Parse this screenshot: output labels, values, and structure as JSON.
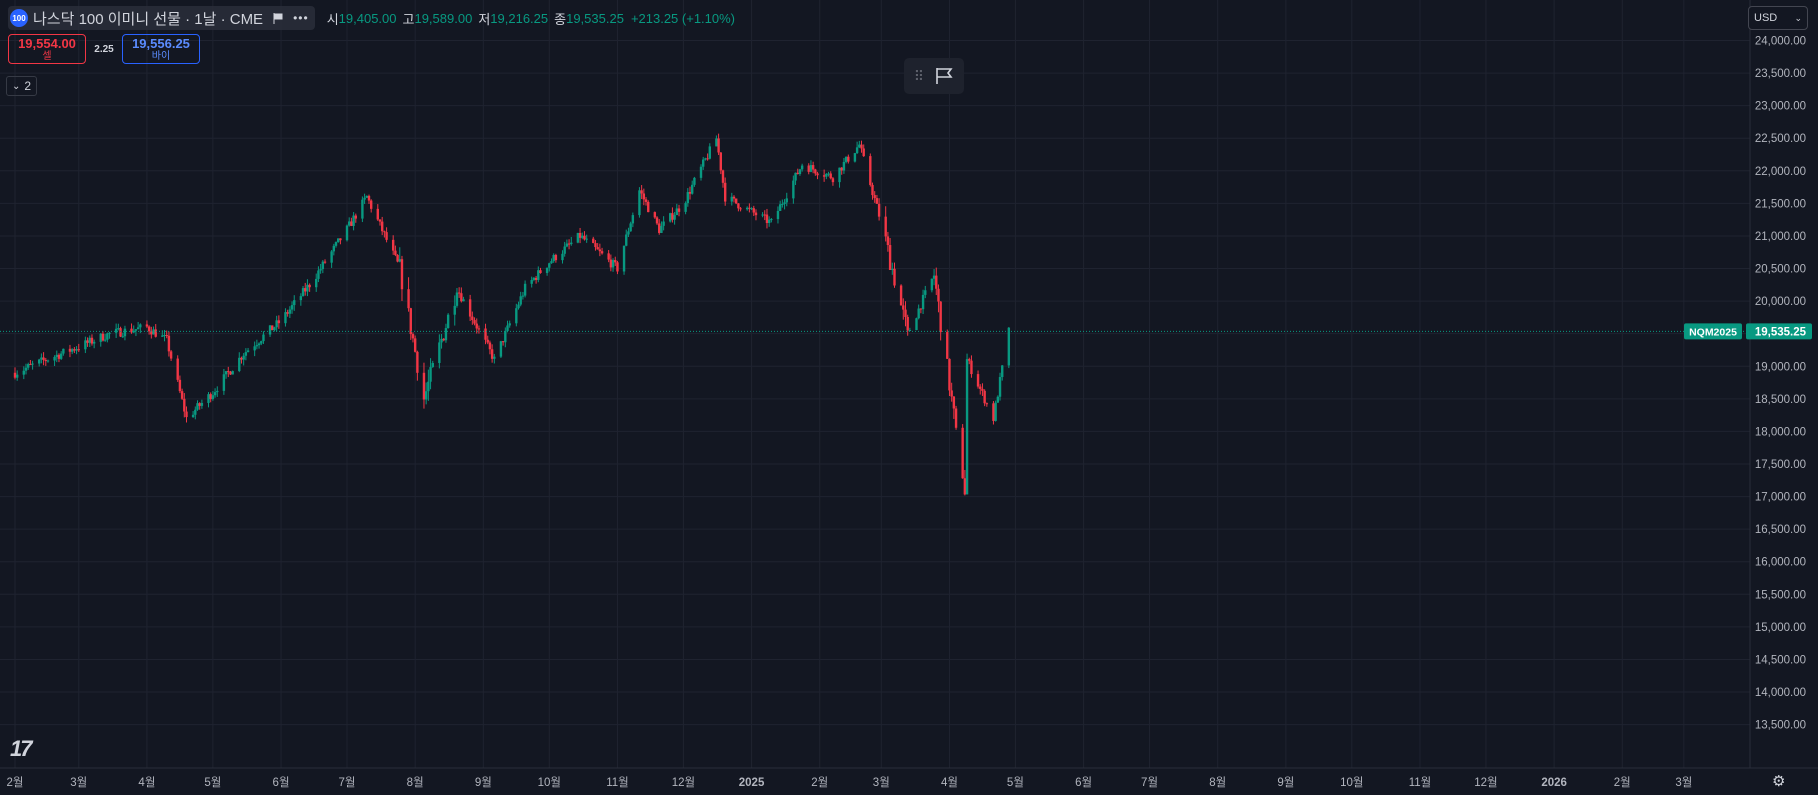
{
  "legend": {
    "symbol_logo": "100",
    "title": "나스닥 100 이미니 선물 · 1날 · CME",
    "more_icon": "more-dots-icon",
    "open_label": "시",
    "open_value": "19,405.00",
    "high_label": "고",
    "high_value": "19,589.00",
    "low_label": "저",
    "low_value": "19,216.25",
    "close_label": "종",
    "close_value": "19,535.25",
    "change": "+213.25 (+1.10%)"
  },
  "trade": {
    "sell_price": "19,554.00",
    "sell_label": "셀",
    "spread": "2.25",
    "buy_price": "19,556.25",
    "buy_label": "바이"
  },
  "collapse_label": "2",
  "currency": "USD",
  "price_tag": {
    "symbol": "NQM2025",
    "value": "19,535.25"
  },
  "colors": {
    "up": "#089981",
    "down": "#f23645",
    "background": "#131722",
    "grid": "#1f2330"
  },
  "chart_data": {
    "type": "candlestick",
    "y_axis_ticks": [
      "24,000.00",
      "23,500.00",
      "23,000.00",
      "22,500.00",
      "22,000.00",
      "21,500.00",
      "21,000.00",
      "20,500.00",
      "20,000.00",
      "19,500.00",
      "19,000.00",
      "18,500.00",
      "18,000.00",
      "17,500.00",
      "17,000.00",
      "16,500.00",
      "16,000.00",
      "15,500.00",
      "15,000.00",
      "14,500.00",
      "14,000.00",
      "13,500.00"
    ],
    "x_axis_ticks": [
      "2월",
      "3월",
      "4월",
      "5월",
      "6월",
      "7월",
      "8월",
      "9월",
      "10월",
      "11월",
      "12월",
      "2025",
      "2월",
      "3월",
      "4월",
      "5월",
      "6월",
      "7월",
      "8월",
      "9월",
      "10월",
      "11월",
      "12월",
      "2026",
      "2월",
      "3월"
    ],
    "ylim": [
      13300,
      24200
    ],
    "last_price": 19535.25,
    "series": [
      {
        "date": "2024-02-01",
        "close": 18900
      },
      {
        "date": "2024-02-15",
        "close": 19100
      },
      {
        "date": "2024-03-01",
        "close": 19300
      },
      {
        "date": "2024-03-15",
        "close": 19500
      },
      {
        "date": "2024-04-01",
        "close": 19600
      },
      {
        "date": "2024-04-10",
        "close": 19400
      },
      {
        "date": "2024-04-19",
        "close": 18200
      },
      {
        "date": "2024-05-01",
        "close": 18600
      },
      {
        "date": "2024-05-15",
        "close": 19200
      },
      {
        "date": "2024-06-01",
        "close": 19700
      },
      {
        "date": "2024-06-15",
        "close": 20300
      },
      {
        "date": "2024-07-01",
        "close": 21100
      },
      {
        "date": "2024-07-10",
        "close": 21600
      },
      {
        "date": "2024-07-25",
        "close": 20500
      },
      {
        "date": "2024-08-05",
        "close": 18500
      },
      {
        "date": "2024-08-20",
        "close": 20200
      },
      {
        "date": "2024-09-06",
        "close": 19100
      },
      {
        "date": "2024-09-20",
        "close": 20200
      },
      {
        "date": "2024-10-01",
        "close": 20600
      },
      {
        "date": "2024-10-15",
        "close": 21000
      },
      {
        "date": "2024-11-01",
        "close": 20500
      },
      {
        "date": "2024-11-11",
        "close": 21700
      },
      {
        "date": "2024-11-20",
        "close": 21100
      },
      {
        "date": "2024-12-01",
        "close": 21500
      },
      {
        "date": "2024-12-16",
        "close": 22500
      },
      {
        "date": "2024-12-20",
        "close": 21600
      },
      {
        "date": "2025-01-10",
        "close": 21200
      },
      {
        "date": "2025-01-24",
        "close": 22100
      },
      {
        "date": "2025-02-07",
        "close": 21900
      },
      {
        "date": "2025-02-19",
        "close": 22400
      },
      {
        "date": "2025-03-01",
        "close": 21200
      },
      {
        "date": "2025-03-13",
        "close": 19500
      },
      {
        "date": "2025-03-25",
        "close": 20400
      },
      {
        "date": "2025-04-04",
        "close": 18000
      },
      {
        "date": "2025-04-08",
        "close": 17100
      },
      {
        "date": "2025-04-09",
        "close": 19100
      },
      {
        "date": "2025-04-21",
        "close": 18200
      },
      {
        "date": "2025-04-28",
        "close": 19535
      }
    ]
  }
}
